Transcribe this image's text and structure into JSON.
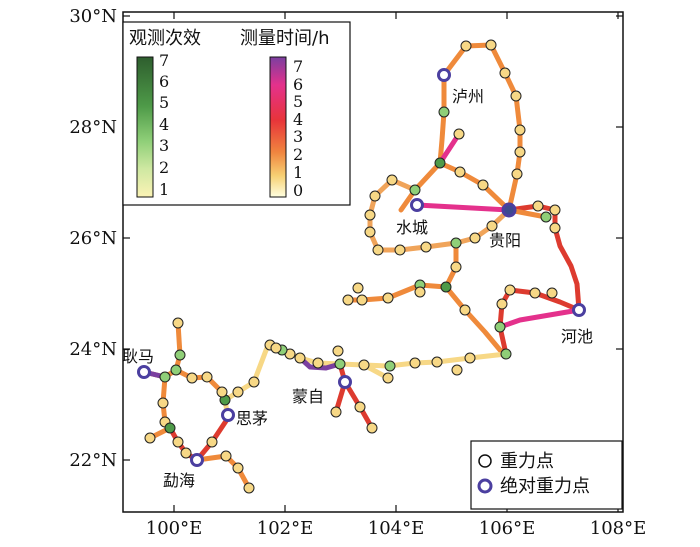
{
  "axes": {
    "x_ticks": [
      "100°E",
      "102°E",
      "104°E",
      "106°E",
      "108°E"
    ],
    "y_ticks": [
      "30°N",
      "28°N",
      "26°N",
      "24°N",
      "22°N"
    ]
  },
  "legend_colorbars": {
    "obs_count": {
      "title": "观测次效",
      "labels": [
        "7",
        "6",
        "5",
        "4",
        "3",
        "2",
        "1"
      ],
      "colors": [
        "#2e5e2e",
        "#4e9a48",
        "#8fcf78",
        "#cfe8a2",
        "#fbf3b5"
      ]
    },
    "duration": {
      "title": "测量时间/h",
      "labels": [
        "7",
        "6",
        "5",
        "4",
        "3",
        "2",
        "1",
        "0"
      ],
      "colors": [
        "#7b3fa0",
        "#e4318c",
        "#e8343a",
        "#f0853f",
        "#f7d174",
        "#ffffe0"
      ]
    }
  },
  "city_labels": {
    "luzhou": "泸州",
    "shuicheng": "水城",
    "guiyang": "贵阳",
    "hechi": "河池",
    "gengma": "耿马",
    "mengzi": "蒙自",
    "simao": "思茅",
    "menghai": "勐海"
  },
  "point_legend": {
    "gravity_point": "重力点",
    "absolute_gravity_point": "绝对重力点"
  },
  "colors": {
    "yellow": "#f7d886",
    "orange": "#ef8a3b",
    "red": "#dd3b2f",
    "magenta": "#d9267f",
    "purple": "#7b3fa0",
    "absolute_fill": "#3d4a8f",
    "absolute_stroke": "#4b3fa0"
  }
}
